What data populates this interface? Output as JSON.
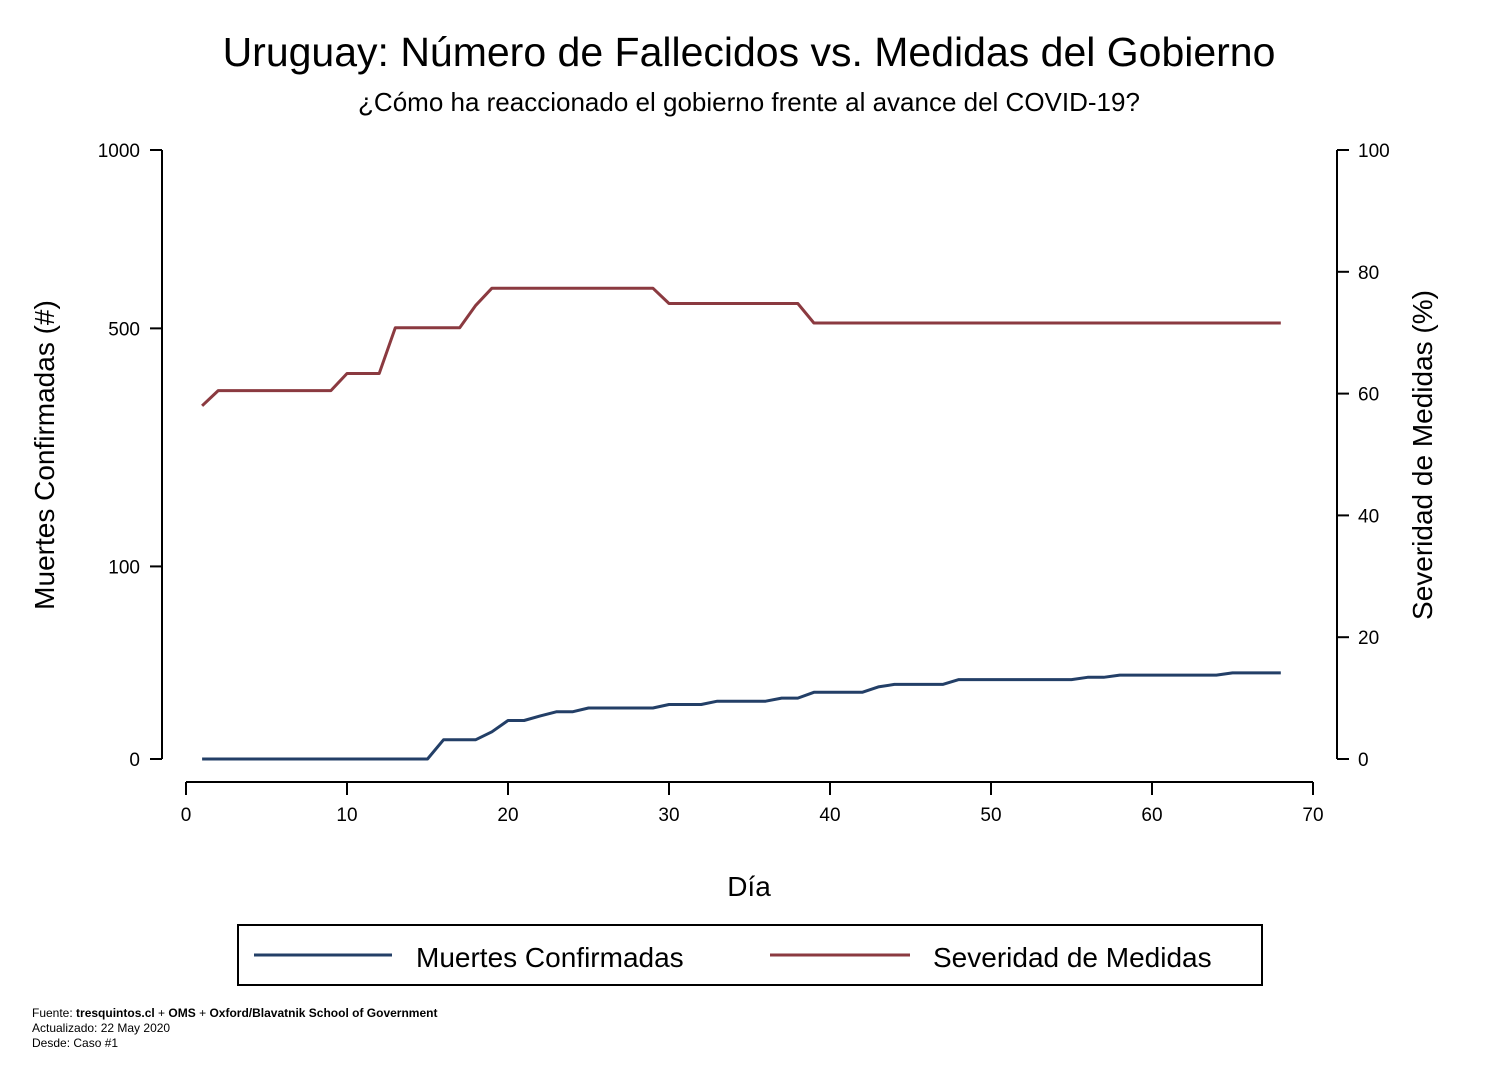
{
  "colors": {
    "deaths": "#233f67",
    "severity": "#8b3a40",
    "axis": "#000000"
  },
  "chart_data": {
    "type": "line",
    "title": "Uruguay: Número de Fallecidos vs. Medidas del Gobierno",
    "subtitle": "¿Cómo ha reaccionado el gobierno frente al avance del COVID-19?",
    "xlabel": "Día",
    "ylabel_left": "Muertes Confirmadas (#)",
    "ylabel_right": "Severidad de Medidas (%)",
    "xlim": [
      0,
      70
    ],
    "xticks": [
      "0",
      "10",
      "20",
      "30",
      "40",
      "50",
      "60",
      "70"
    ],
    "ylim_left": [
      0,
      1000
    ],
    "ylim_left_scale": "square-root",
    "yticks_left": [
      "0",
      "100",
      "500",
      "1000"
    ],
    "ylim_right": [
      0,
      100
    ],
    "yticks_right": [
      "0",
      "20",
      "40",
      "60",
      "80",
      "100"
    ],
    "grid": false,
    "legend_position": "bottom",
    "series": [
      {
        "name": "Muertes Confirmadas",
        "axis": "left",
        "points": [
          [
            1,
            0
          ],
          [
            2,
            0
          ],
          [
            3,
            0
          ],
          [
            4,
            0
          ],
          [
            5,
            0
          ],
          [
            6,
            0
          ],
          [
            7,
            0
          ],
          [
            8,
            0
          ],
          [
            9,
            0
          ],
          [
            10,
            0
          ],
          [
            11,
            0
          ],
          [
            12,
            0
          ],
          [
            13,
            0
          ],
          [
            14,
            0
          ],
          [
            15,
            0
          ],
          [
            16,
            1
          ],
          [
            17,
            1
          ],
          [
            18,
            1
          ],
          [
            19,
            2
          ],
          [
            20,
            4
          ],
          [
            21,
            4
          ],
          [
            22,
            5
          ],
          [
            23,
            6
          ],
          [
            24,
            6
          ],
          [
            25,
            7
          ],
          [
            26,
            7
          ],
          [
            27,
            7
          ],
          [
            28,
            7
          ],
          [
            29,
            7
          ],
          [
            30,
            8
          ],
          [
            31,
            8
          ],
          [
            32,
            8
          ],
          [
            33,
            9
          ],
          [
            34,
            9
          ],
          [
            35,
            9
          ],
          [
            36,
            9
          ],
          [
            37,
            10
          ],
          [
            38,
            10
          ],
          [
            39,
            12
          ],
          [
            40,
            12
          ],
          [
            41,
            12
          ],
          [
            42,
            12
          ],
          [
            43,
            14
          ],
          [
            44,
            15
          ],
          [
            45,
            15
          ],
          [
            46,
            15
          ],
          [
            47,
            15
          ],
          [
            48,
            17
          ],
          [
            49,
            17
          ],
          [
            50,
            17
          ],
          [
            51,
            17
          ],
          [
            52,
            17
          ],
          [
            53,
            17
          ],
          [
            54,
            17
          ],
          [
            55,
            17
          ],
          [
            56,
            18
          ],
          [
            57,
            18
          ],
          [
            58,
            19
          ],
          [
            59,
            19
          ],
          [
            60,
            19
          ],
          [
            61,
            19
          ],
          [
            62,
            19
          ],
          [
            63,
            19
          ],
          [
            64,
            19
          ],
          [
            65,
            20
          ],
          [
            66,
            20
          ],
          [
            67,
            20
          ],
          [
            68,
            20
          ]
        ]
      },
      {
        "name": "Severidad de Medidas",
        "axis": "right",
        "points": [
          [
            1,
            58
          ],
          [
            2,
            60.5
          ],
          [
            3,
            60.5
          ],
          [
            4,
            60.5
          ],
          [
            5,
            60.5
          ],
          [
            6,
            60.5
          ],
          [
            7,
            60.5
          ],
          [
            8,
            60.5
          ],
          [
            9,
            60.5
          ],
          [
            10,
            63.3
          ],
          [
            11,
            63.3
          ],
          [
            12,
            63.3
          ],
          [
            13,
            70.8
          ],
          [
            14,
            70.8
          ],
          [
            15,
            70.8
          ],
          [
            16,
            70.8
          ],
          [
            17,
            70.8
          ],
          [
            18,
            74.5
          ],
          [
            19,
            77.3
          ],
          [
            20,
            77.3
          ],
          [
            21,
            77.3
          ],
          [
            22,
            77.3
          ],
          [
            23,
            77.3
          ],
          [
            24,
            77.3
          ],
          [
            25,
            77.3
          ],
          [
            26,
            77.3
          ],
          [
            27,
            77.3
          ],
          [
            28,
            77.3
          ],
          [
            29,
            77.3
          ],
          [
            30,
            74.8
          ],
          [
            31,
            74.8
          ],
          [
            32,
            74.8
          ],
          [
            33,
            74.8
          ],
          [
            34,
            74.8
          ],
          [
            35,
            74.8
          ],
          [
            36,
            74.8
          ],
          [
            37,
            74.8
          ],
          [
            38,
            74.8
          ],
          [
            39,
            71.6
          ],
          [
            40,
            71.6
          ],
          [
            68,
            71.6
          ]
        ]
      }
    ]
  },
  "footer": {
    "source_prefix": "Fuente: ",
    "source_bold": "tresquintos.cl",
    "source_sep1": " + ",
    "source_bold2": "OMS",
    "source_sep2": " + ",
    "source_bold3": "Oxford/Blavatnik School of Government",
    "updated": "Actualizado: 22 May 2020",
    "since": "Desde: Caso #1"
  }
}
